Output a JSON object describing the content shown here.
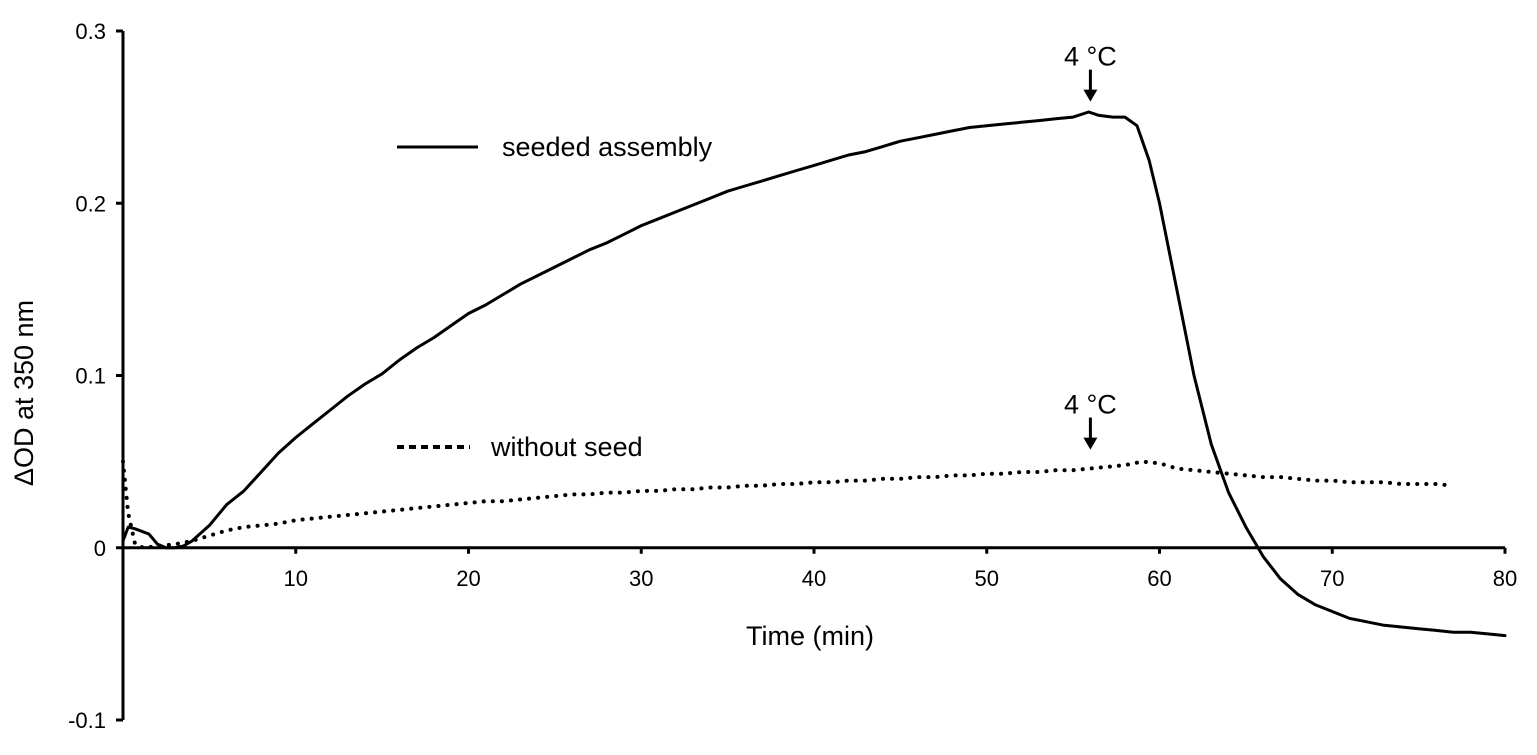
{
  "chart_data": {
    "type": "line",
    "xlabel": "Time (min)",
    "ylabel": "ΔOD at 350 nm",
    "xlim": [
      0,
      80
    ],
    "ylim": [
      -0.1,
      0.3
    ],
    "x_ticks": [
      10,
      20,
      30,
      40,
      50,
      60,
      70,
      80
    ],
    "x_tick_labels": [
      "10",
      "20",
      "30",
      "40",
      "50",
      "60",
      "70",
      "80"
    ],
    "y_ticks": [
      -0.1,
      0,
      0.1,
      0.2,
      0.3
    ],
    "y_tick_labels": [
      "-0.1",
      "0",
      "0.1",
      "0.2",
      "0.3"
    ],
    "grid": false,
    "legend_position": "inside-left",
    "series": [
      {
        "name": "seeded assembly",
        "style": "solid",
        "color": "#000000",
        "x": [
          0,
          0.3,
          0.7,
          1.5,
          2,
          2.5,
          3,
          3.5,
          4,
          5,
          6,
          7,
          8,
          9,
          10,
          11,
          12,
          13,
          14,
          15,
          16,
          17,
          18,
          19,
          20,
          21,
          22,
          23,
          24,
          25,
          26,
          27,
          28,
          29,
          30,
          31,
          32,
          33,
          34,
          35,
          36,
          37,
          38,
          39,
          40,
          41,
          42,
          43,
          44,
          45,
          46,
          47,
          48,
          49,
          50,
          51,
          52,
          53,
          54,
          55,
          55.9,
          56.5,
          57.3,
          58,
          58.7,
          59.4,
          60,
          61,
          62,
          63,
          64,
          65,
          66,
          67,
          68,
          69,
          70,
          71,
          72,
          73,
          74,
          75,
          76,
          77,
          78,
          79,
          80
        ],
        "y": [
          0.004,
          0.012,
          0.011,
          0.008,
          0.002,
          0.0,
          0.0,
          0.001,
          0.004,
          0.013,
          0.025,
          0.033,
          0.044,
          0.055,
          0.064,
          0.072,
          0.08,
          0.088,
          0.095,
          0.101,
          0.109,
          0.116,
          0.122,
          0.129,
          0.136,
          0.141,
          0.147,
          0.153,
          0.158,
          0.163,
          0.168,
          0.173,
          0.177,
          0.182,
          0.187,
          0.191,
          0.195,
          0.199,
          0.203,
          0.207,
          0.21,
          0.213,
          0.216,
          0.219,
          0.222,
          0.225,
          0.228,
          0.23,
          0.233,
          0.236,
          0.238,
          0.24,
          0.242,
          0.244,
          0.245,
          0.246,
          0.247,
          0.248,
          0.249,
          0.25,
          0.253,
          0.251,
          0.25,
          0.25,
          0.245,
          0.225,
          0.2,
          0.15,
          0.1,
          0.06,
          0.032,
          0.012,
          -0.005,
          -0.018,
          -0.027,
          -0.033,
          -0.037,
          -0.041,
          -0.043,
          -0.045,
          -0.046,
          -0.047,
          -0.048,
          -0.049,
          -0.049,
          -0.05,
          -0.051
        ]
      },
      {
        "name": "without seed",
        "style": "dotted",
        "color": "#000000",
        "x": [
          0,
          0.3,
          0.7,
          1.2,
          2,
          3,
          4,
          5,
          6,
          7,
          8,
          9,
          10,
          11,
          12,
          13,
          14,
          15,
          16,
          17,
          18,
          19,
          20,
          21,
          22,
          23,
          24,
          25,
          26,
          27,
          28,
          29,
          30,
          31,
          32,
          33,
          34,
          35,
          36,
          37,
          38,
          39,
          40,
          41,
          42,
          43,
          44,
          45,
          46,
          47,
          48,
          49,
          50,
          51,
          52,
          53,
          54,
          55,
          56,
          57,
          58,
          59,
          60,
          61,
          62,
          63,
          64,
          65,
          66,
          67,
          68,
          69,
          70,
          71,
          72,
          73,
          74,
          75,
          76,
          77
        ],
        "y": [
          0.05,
          0.02,
          0.002,
          0.0,
          0.001,
          0.002,
          0.004,
          0.007,
          0.01,
          0.012,
          0.013,
          0.014,
          0.016,
          0.017,
          0.018,
          0.019,
          0.02,
          0.021,
          0.022,
          0.023,
          0.024,
          0.025,
          0.026,
          0.027,
          0.027,
          0.028,
          0.029,
          0.03,
          0.031,
          0.031,
          0.032,
          0.032,
          0.033,
          0.033,
          0.034,
          0.034,
          0.035,
          0.035,
          0.036,
          0.036,
          0.037,
          0.037,
          0.038,
          0.038,
          0.039,
          0.039,
          0.04,
          0.04,
          0.041,
          0.041,
          0.042,
          0.042,
          0.043,
          0.043,
          0.044,
          0.044,
          0.045,
          0.045,
          0.046,
          0.047,
          0.048,
          0.05,
          0.049,
          0.046,
          0.045,
          0.044,
          0.043,
          0.042,
          0.041,
          0.041,
          0.04,
          0.039,
          0.039,
          0.038,
          0.038,
          0.038,
          0.037,
          0.037,
          0.037,
          0.036
        ]
      }
    ],
    "annotations": [
      {
        "text": "4 °C",
        "x": 56,
        "y_arrow_tip": 0.259,
        "target_series": "seeded assembly",
        "marker": "down-arrow"
      },
      {
        "text": "4 °C",
        "x": 56,
        "y_arrow_tip": 0.057,
        "target_series": "without seed",
        "marker": "down-arrow"
      }
    ]
  }
}
